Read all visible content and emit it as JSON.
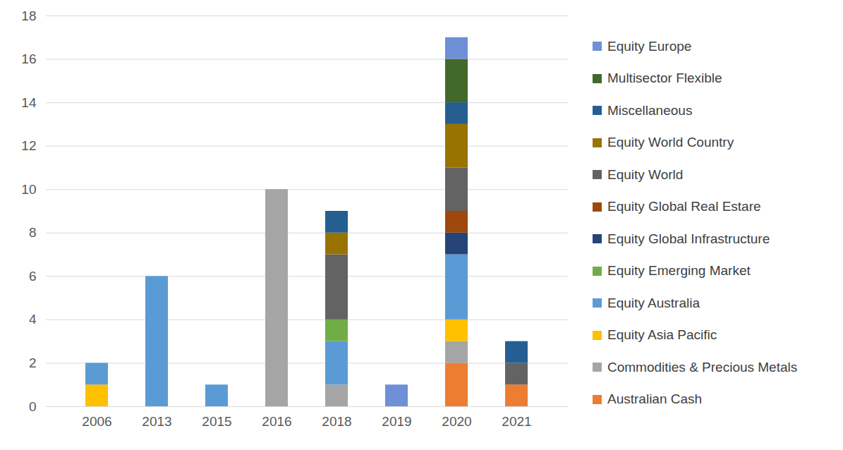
{
  "chart_data": {
    "type": "bar",
    "stacked": true,
    "grid": true,
    "legend": "right",
    "categories": [
      "2006",
      "2013",
      "2015",
      "2016",
      "2018",
      "2019",
      "2020",
      "2021"
    ],
    "ylim": [
      0,
      18
    ],
    "yticks": [
      0,
      2,
      4,
      6,
      8,
      10,
      12,
      14,
      16,
      18
    ],
    "series": [
      {
        "name": "Australian Cash",
        "color": "#ed7d31",
        "values": [
          0,
          0,
          0,
          0,
          0,
          0,
          2,
          1
        ]
      },
      {
        "name": "Commodities & Precious Metals",
        "color": "#a5a5a5",
        "values": [
          0,
          0,
          0,
          10,
          1,
          0,
          1,
          0
        ]
      },
      {
        "name": "Equity Asia Pacific",
        "color": "#ffc000",
        "values": [
          1,
          0,
          0,
          0,
          0,
          0,
          1,
          0
        ]
      },
      {
        "name": "Equity Australia",
        "color": "#5b9bd5",
        "values": [
          1,
          6,
          1,
          0,
          2,
          0,
          3,
          0
        ]
      },
      {
        "name": "Equity Emerging Market",
        "color": "#70ad47",
        "values": [
          0,
          0,
          0,
          0,
          1,
          0,
          0,
          0
        ]
      },
      {
        "name": "Equity Global Infrastructure",
        "color": "#264478",
        "values": [
          0,
          0,
          0,
          0,
          0,
          0,
          1,
          0
        ]
      },
      {
        "name": "Equity Global Real Estare",
        "color": "#9e480e",
        "values": [
          0,
          0,
          0,
          0,
          0,
          0,
          1,
          0
        ]
      },
      {
        "name": "Equity World",
        "color": "#636363",
        "values": [
          0,
          0,
          0,
          0,
          3,
          0,
          2,
          1
        ]
      },
      {
        "name": "Equity World Country",
        "color": "#997300",
        "values": [
          0,
          0,
          0,
          0,
          1,
          0,
          2,
          0
        ]
      },
      {
        "name": "Miscellaneous",
        "color": "#255e91",
        "values": [
          0,
          0,
          0,
          0,
          1,
          0,
          1,
          1
        ]
      },
      {
        "name": "Multisector Flexible",
        "color": "#43682b",
        "values": [
          0,
          0,
          0,
          0,
          0,
          0,
          2,
          0
        ]
      },
      {
        "name": "Equity Europe",
        "color": "#6f8fd6",
        "values": [
          0,
          0,
          0,
          0,
          0,
          1,
          1,
          0
        ]
      }
    ]
  }
}
